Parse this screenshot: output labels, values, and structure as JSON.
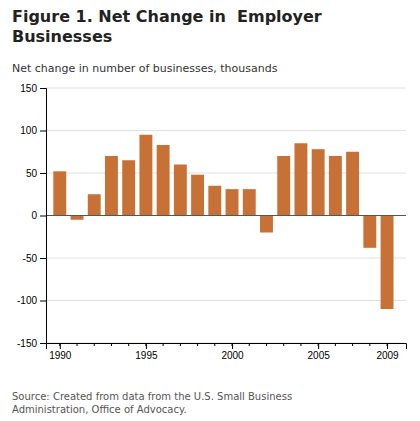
{
  "chart_data": {
    "type": "bar",
    "title": "Figure 1. Net Change in  Employer\nBusinesses",
    "ylabel": "Net change in number of businesses, thousands",
    "source": "Source: Created from data from the U.S. Small Business\nAdministration, Office of Advocacy.",
    "x": [
      1990,
      1991,
      1992,
      1993,
      1994,
      1995,
      1996,
      1997,
      1998,
      1999,
      2000,
      2001,
      2002,
      2003,
      2004,
      2005,
      2006,
      2007,
      2008,
      2009
    ],
    "values": [
      52,
      -5,
      25,
      70,
      65,
      95,
      83,
      60,
      48,
      35,
      31,
      31,
      -20,
      70,
      85,
      78,
      70,
      75,
      -38,
      -110
    ],
    "color": "#C87137",
    "xlim": [
      1989.2,
      2010.1
    ],
    "xticks": [
      1990,
      1995,
      2000,
      2005,
      2009
    ],
    "ylim": [
      -150,
      150
    ],
    "yticks": [
      -150,
      -100,
      -50,
      0,
      50,
      100,
      150
    ],
    "grid": true
  }
}
